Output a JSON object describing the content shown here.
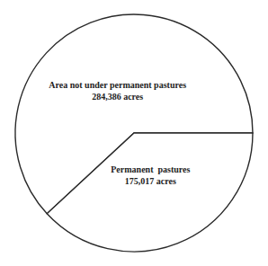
{
  "chart_data": {
    "type": "pie",
    "categories": [
      "Area not under permanent pastures",
      "Permanent  pastures"
    ],
    "values": [
      284386,
      175017
    ],
    "value_labels": [
      "284,386 acres",
      "175,017 acres"
    ],
    "data_labels": true,
    "colors": [
      "#ffffff",
      "#ffffff"
    ]
  }
}
